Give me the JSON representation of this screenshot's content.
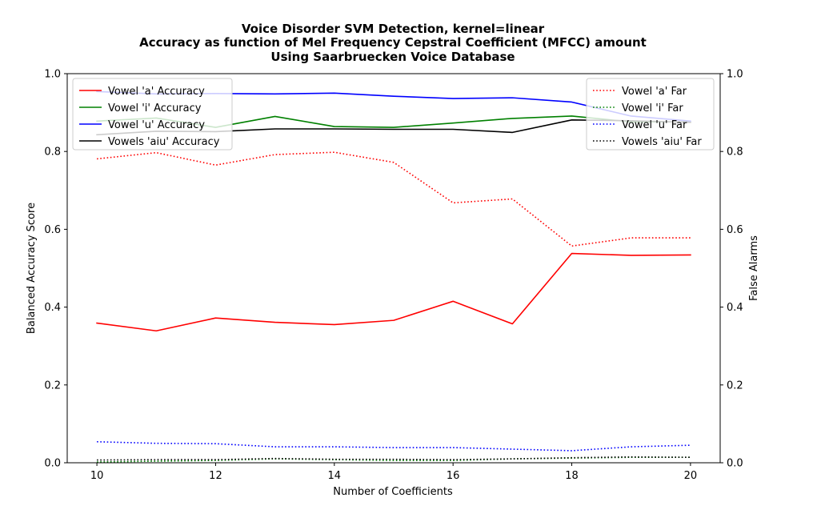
{
  "chart_data": {
    "type": "line",
    "title": [
      "Voice Disorder SVM Detection, kernel=linear",
      "Accuracy as function of Mel Frequency Cepstral Coefficient (MFCC) amount",
      "Using Saarbruecken Voice Database"
    ],
    "xlabel": "Number of Coefficients",
    "ylabel": "Balanced Accuracy Score",
    "y2label": "False Alarms",
    "xlim": [
      9.5,
      20.5
    ],
    "ylim": [
      0,
      1.0
    ],
    "y2lim": [
      0,
      1.0
    ],
    "x_ticks": [
      10,
      12,
      14,
      16,
      18,
      20
    ],
    "x_tick_labels": [
      "10",
      "12",
      "14",
      "16",
      "18",
      "20"
    ],
    "y_ticks": [
      0,
      0.2,
      0.4,
      0.6,
      0.8,
      1.0
    ],
    "y_tick_labels": [
      "0.0",
      "0.2",
      "0.4",
      "0.6",
      "0.8",
      "1.0"
    ],
    "grid": false,
    "x": [
      10,
      11,
      12,
      13,
      14,
      15,
      16,
      17,
      18,
      19,
      20
    ],
    "accuracy_series": [
      {
        "name": "Vowel 'a' Accuracy",
        "color": "#ff0000",
        "style": "solid",
        "axis": "left",
        "values": [
          0.359,
          0.339,
          0.372,
          0.361,
          0.355,
          0.366,
          0.415,
          0.357,
          0.538,
          0.533,
          0.534
        ]
      },
      {
        "name": "Vowel 'i' Accuracy",
        "color": "#008000",
        "style": "solid",
        "axis": "left",
        "values": [
          0.878,
          0.886,
          0.862,
          0.89,
          0.864,
          0.862,
          0.873,
          0.885,
          0.891,
          0.876,
          0.876
        ]
      },
      {
        "name": "Vowel 'u' Accuracy",
        "color": "#0000ff",
        "style": "solid",
        "axis": "left",
        "values": [
          0.954,
          0.948,
          0.949,
          0.948,
          0.95,
          0.942,
          0.936,
          0.938,
          0.927,
          0.891,
          0.878
        ]
      },
      {
        "name": "Vowels 'aiu' Accuracy",
        "color": "#000000",
        "style": "solid",
        "axis": "left",
        "values": [
          0.843,
          0.852,
          0.851,
          0.858,
          0.858,
          0.857,
          0.857,
          0.849,
          0.881,
          0.879,
          0.875
        ]
      }
    ],
    "far_series": [
      {
        "name": "Vowel 'a' Far",
        "color": "#ff0000",
        "style": "dotted",
        "axis": "right",
        "values": [
          0.781,
          0.797,
          0.765,
          0.792,
          0.798,
          0.772,
          0.668,
          0.678,
          0.557,
          0.578,
          0.578
        ]
      },
      {
        "name": "Vowel 'i' Far",
        "color": "#008000",
        "style": "dotted",
        "axis": "right",
        "values": [
          0.002,
          0.004,
          0.006,
          0.01,
          0.008,
          0.006,
          0.006,
          0.01,
          0.012,
          0.014,
          0.014
        ]
      },
      {
        "name": "Vowel 'u' Far",
        "color": "#0000ff",
        "style": "dotted",
        "axis": "right",
        "values": [
          0.054,
          0.05,
          0.049,
          0.041,
          0.041,
          0.039,
          0.039,
          0.035,
          0.031,
          0.041,
          0.045
        ]
      },
      {
        "name": "Vowels 'aiu' Far",
        "color": "#000000",
        "style": "dotted",
        "axis": "right",
        "values": [
          0.007,
          0.008,
          0.008,
          0.011,
          0.009,
          0.009,
          0.008,
          0.01,
          0.013,
          0.015,
          0.014
        ]
      }
    ],
    "legend_left_placement": "upper-left",
    "legend_right_placement": "upper-right"
  }
}
